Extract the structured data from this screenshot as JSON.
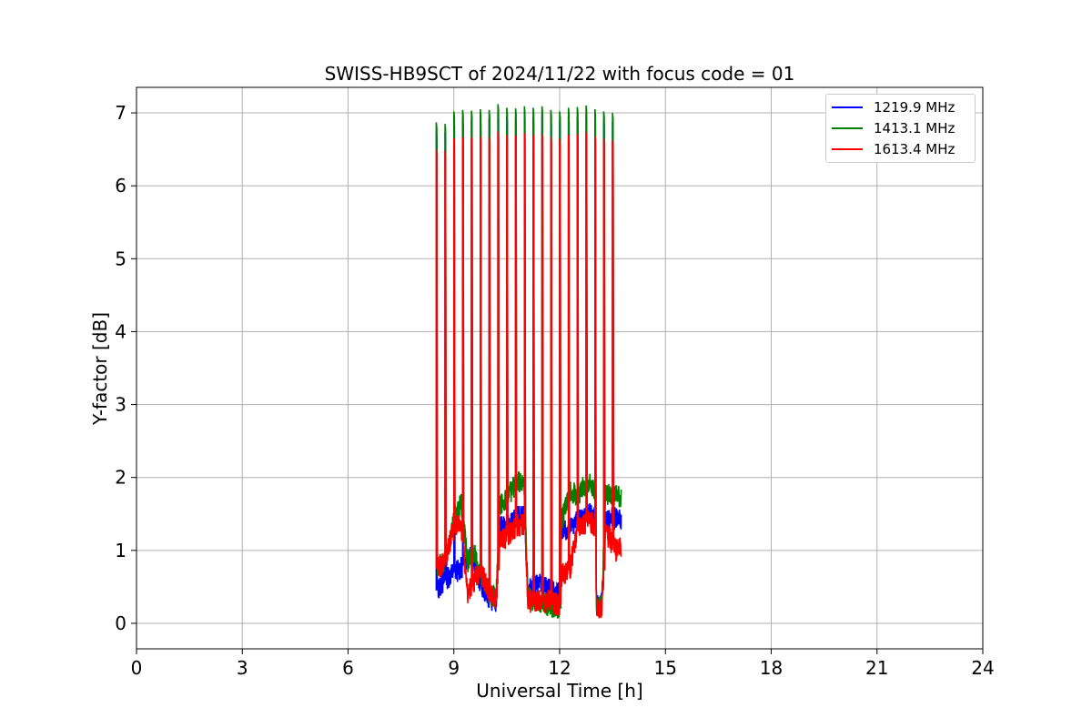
{
  "chart_data": {
    "type": "line",
    "title": "SWISS-HB9SCT of 2024/11/22 with focus code = 01",
    "xlabel": "Universal Time [h]",
    "ylabel": "Y-factor [dB]",
    "xlim": [
      0,
      24
    ],
    "ylim": [
      -0.35,
      7.35
    ],
    "x_ticks": [
      0,
      3,
      6,
      9,
      12,
      15,
      18,
      21,
      24
    ],
    "y_ticks": [
      0,
      1,
      2,
      3,
      4,
      5,
      6,
      7
    ],
    "grid": true,
    "legend_position": "top-right",
    "scan_peaks": [
      {
        "x": 8.5,
        "peak": 6.75,
        "gap_before": 0
      },
      {
        "x": 8.75,
        "peak": 6.73,
        "gap_before": 1
      },
      {
        "x": 9.0,
        "peak": 6.9,
        "gap_before": 1
      },
      {
        "x": 9.25,
        "peak": 6.92,
        "gap_before": 1
      },
      {
        "x": 9.5,
        "peak": 6.91,
        "gap_before": 1
      },
      {
        "x": 9.75,
        "peak": 6.93,
        "gap_before": 1
      },
      {
        "x": 10.0,
        "peak": 6.92,
        "gap_before": 1
      },
      {
        "x": 10.25,
        "peak": 7.0,
        "gap_before": 1
      },
      {
        "x": 10.5,
        "peak": 6.95,
        "gap_before": 1
      },
      {
        "x": 10.75,
        "peak": 6.94,
        "gap_before": 1
      },
      {
        "x": 11.0,
        "peak": 6.97,
        "gap_before": 1
      },
      {
        "x": 11.25,
        "peak": 6.95,
        "gap_before": 1
      },
      {
        "x": 11.5,
        "peak": 6.97,
        "gap_before": 1
      },
      {
        "x": 11.75,
        "peak": 6.92,
        "gap_before": 1
      },
      {
        "x": 12.0,
        "peak": 6.9,
        "gap_before": 1
      },
      {
        "x": 12.25,
        "peak": 6.95,
        "gap_before": 1
      },
      {
        "x": 12.5,
        "peak": 6.96,
        "gap_before": 1
      },
      {
        "x": 12.75,
        "peak": 6.98,
        "gap_before": 1
      },
      {
        "x": 13.0,
        "peak": 6.93,
        "gap_before": 1
      },
      {
        "x": 13.25,
        "peak": 6.9,
        "gap_before": 1
      },
      {
        "x": 13.5,
        "peak": 6.88,
        "gap_before": 1
      }
    ],
    "series": [
      {
        "name": "1219.9 MHz",
        "color": "#0000ff",
        "peak_offset": 0.0,
        "baseline": [
          {
            "x": 8.52,
            "y": 0.45
          },
          {
            "x": 8.75,
            "y": 0.6
          },
          {
            "x": 9.0,
            "y": 0.7
          },
          {
            "x": 9.2,
            "y": 0.75
          },
          {
            "x": 9.5,
            "y": 1.0
          },
          {
            "x": 9.75,
            "y": 0.55
          },
          {
            "x": 10.0,
            "y": 0.35
          },
          {
            "x": 10.2,
            "y": 0.3
          },
          {
            "x": 10.3,
            "y": 1.3
          },
          {
            "x": 10.6,
            "y": 1.35
          },
          {
            "x": 10.8,
            "y": 1.45
          },
          {
            "x": 11.0,
            "y": 1.5
          },
          {
            "x": 11.1,
            "y": 0.45
          },
          {
            "x": 11.4,
            "y": 0.55
          },
          {
            "x": 11.7,
            "y": 0.45
          },
          {
            "x": 12.0,
            "y": 0.4
          },
          {
            "x": 12.05,
            "y": 1.3
          },
          {
            "x": 12.3,
            "y": 1.3
          },
          {
            "x": 12.5,
            "y": 1.4
          },
          {
            "x": 12.8,
            "y": 1.5
          },
          {
            "x": 13.0,
            "y": 1.45
          },
          {
            "x": 13.05,
            "y": 0.25
          },
          {
            "x": 13.2,
            "y": 0.28
          },
          {
            "x": 13.3,
            "y": 1.4
          },
          {
            "x": 13.6,
            "y": 1.45
          },
          {
            "x": 13.75,
            "y": 1.42
          }
        ]
      },
      {
        "name": "1413.1 MHz",
        "color": "#008000",
        "peak_offset": 0.12,
        "baseline": [
          {
            "x": 8.52,
            "y": 0.8
          },
          {
            "x": 8.75,
            "y": 0.85
          },
          {
            "x": 9.0,
            "y": 1.4
          },
          {
            "x": 9.2,
            "y": 1.65
          },
          {
            "x": 9.4,
            "y": 0.85
          },
          {
            "x": 9.6,
            "y": 1.0
          },
          {
            "x": 9.75,
            "y": 0.7
          },
          {
            "x": 10.0,
            "y": 0.4
          },
          {
            "x": 10.2,
            "y": 0.35
          },
          {
            "x": 10.3,
            "y": 1.6
          },
          {
            "x": 10.6,
            "y": 1.8
          },
          {
            "x": 10.8,
            "y": 1.95
          },
          {
            "x": 11.0,
            "y": 1.85
          },
          {
            "x": 11.1,
            "y": 0.35
          },
          {
            "x": 11.4,
            "y": 0.3
          },
          {
            "x": 11.7,
            "y": 0.25
          },
          {
            "x": 12.0,
            "y": 0.2
          },
          {
            "x": 12.05,
            "y": 1.4
          },
          {
            "x": 12.3,
            "y": 1.8
          },
          {
            "x": 12.5,
            "y": 1.75
          },
          {
            "x": 12.8,
            "y": 1.95
          },
          {
            "x": 13.0,
            "y": 1.85
          },
          {
            "x": 13.05,
            "y": 0.2
          },
          {
            "x": 13.2,
            "y": 0.25
          },
          {
            "x": 13.3,
            "y": 1.75
          },
          {
            "x": 13.6,
            "y": 1.75
          },
          {
            "x": 13.75,
            "y": 1.7
          }
        ]
      },
      {
        "name": "1613.4 MHz",
        "color": "#ff0000",
        "peak_offset": -0.25,
        "baseline": [
          {
            "x": 8.52,
            "y": 0.75
          },
          {
            "x": 8.75,
            "y": 0.85
          },
          {
            "x": 9.0,
            "y": 1.3
          },
          {
            "x": 9.2,
            "y": 1.35
          },
          {
            "x": 9.4,
            "y": 0.4
          },
          {
            "x": 9.6,
            "y": 0.6
          },
          {
            "x": 9.75,
            "y": 0.75
          },
          {
            "x": 10.0,
            "y": 0.4
          },
          {
            "x": 10.2,
            "y": 0.35
          },
          {
            "x": 10.3,
            "y": 1.1
          },
          {
            "x": 10.6,
            "y": 1.25
          },
          {
            "x": 10.8,
            "y": 1.35
          },
          {
            "x": 11.0,
            "y": 1.35
          },
          {
            "x": 11.1,
            "y": 0.3
          },
          {
            "x": 11.4,
            "y": 0.3
          },
          {
            "x": 11.7,
            "y": 0.3
          },
          {
            "x": 12.0,
            "y": 0.25
          },
          {
            "x": 12.05,
            "y": 0.65
          },
          {
            "x": 12.3,
            "y": 0.75
          },
          {
            "x": 12.5,
            "y": 1.3
          },
          {
            "x": 12.8,
            "y": 1.4
          },
          {
            "x": 13.0,
            "y": 1.35
          },
          {
            "x": 13.05,
            "y": 0.2
          },
          {
            "x": 13.2,
            "y": 0.2
          },
          {
            "x": 13.3,
            "y": 1.25
          },
          {
            "x": 13.6,
            "y": 1.0
          },
          {
            "x": 13.75,
            "y": 1.05
          }
        ]
      }
    ]
  }
}
